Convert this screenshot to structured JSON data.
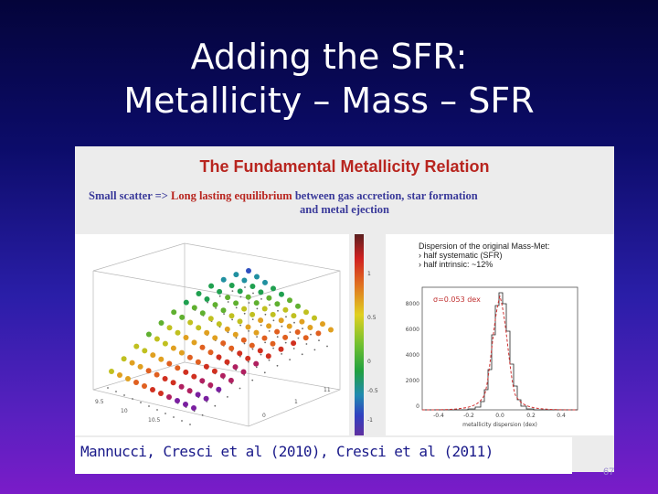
{
  "slide": {
    "title_line1": "Adding the SFR:",
    "title_line2": "Metallicity – Mass – SFR",
    "page_number": "67"
  },
  "figure": {
    "heading": "The Fundamental Metallicity Relation",
    "subtitle_prefix": "Small scatter => ",
    "subtitle_highlight": "Long lasting equilibrium",
    "subtitle_rest": " between gas accretion, star formation",
    "subtitle_line2": "and metal ejection",
    "dispersion_line1": "Dispersion of the original  Mass-Met:",
    "dispersion_line2": "› half systematic (SFR)",
    "dispersion_line3": "› half intrinsic: ~12%",
    "sigma_label": "σ=0.053 dex",
    "hist_xlabel": "metallicity dispersion (dex)",
    "hist_yticks": [
      "8000",
      "6000",
      "4000",
      "2000",
      "0"
    ],
    "hist_xticks": [
      "-0.4",
      "-0.2",
      "0.0",
      "0.2",
      "0.4"
    ],
    "colorbar_ticks": [
      "1",
      "0.5",
      "0",
      "-0.5",
      "-1"
    ],
    "colors": {
      "red": "#b8251f",
      "blue": "#3a3a9a"
    }
  },
  "caption": {
    "text": "Mannucci, Cresci et al  (2010), Cresci et al (2011)"
  }
}
